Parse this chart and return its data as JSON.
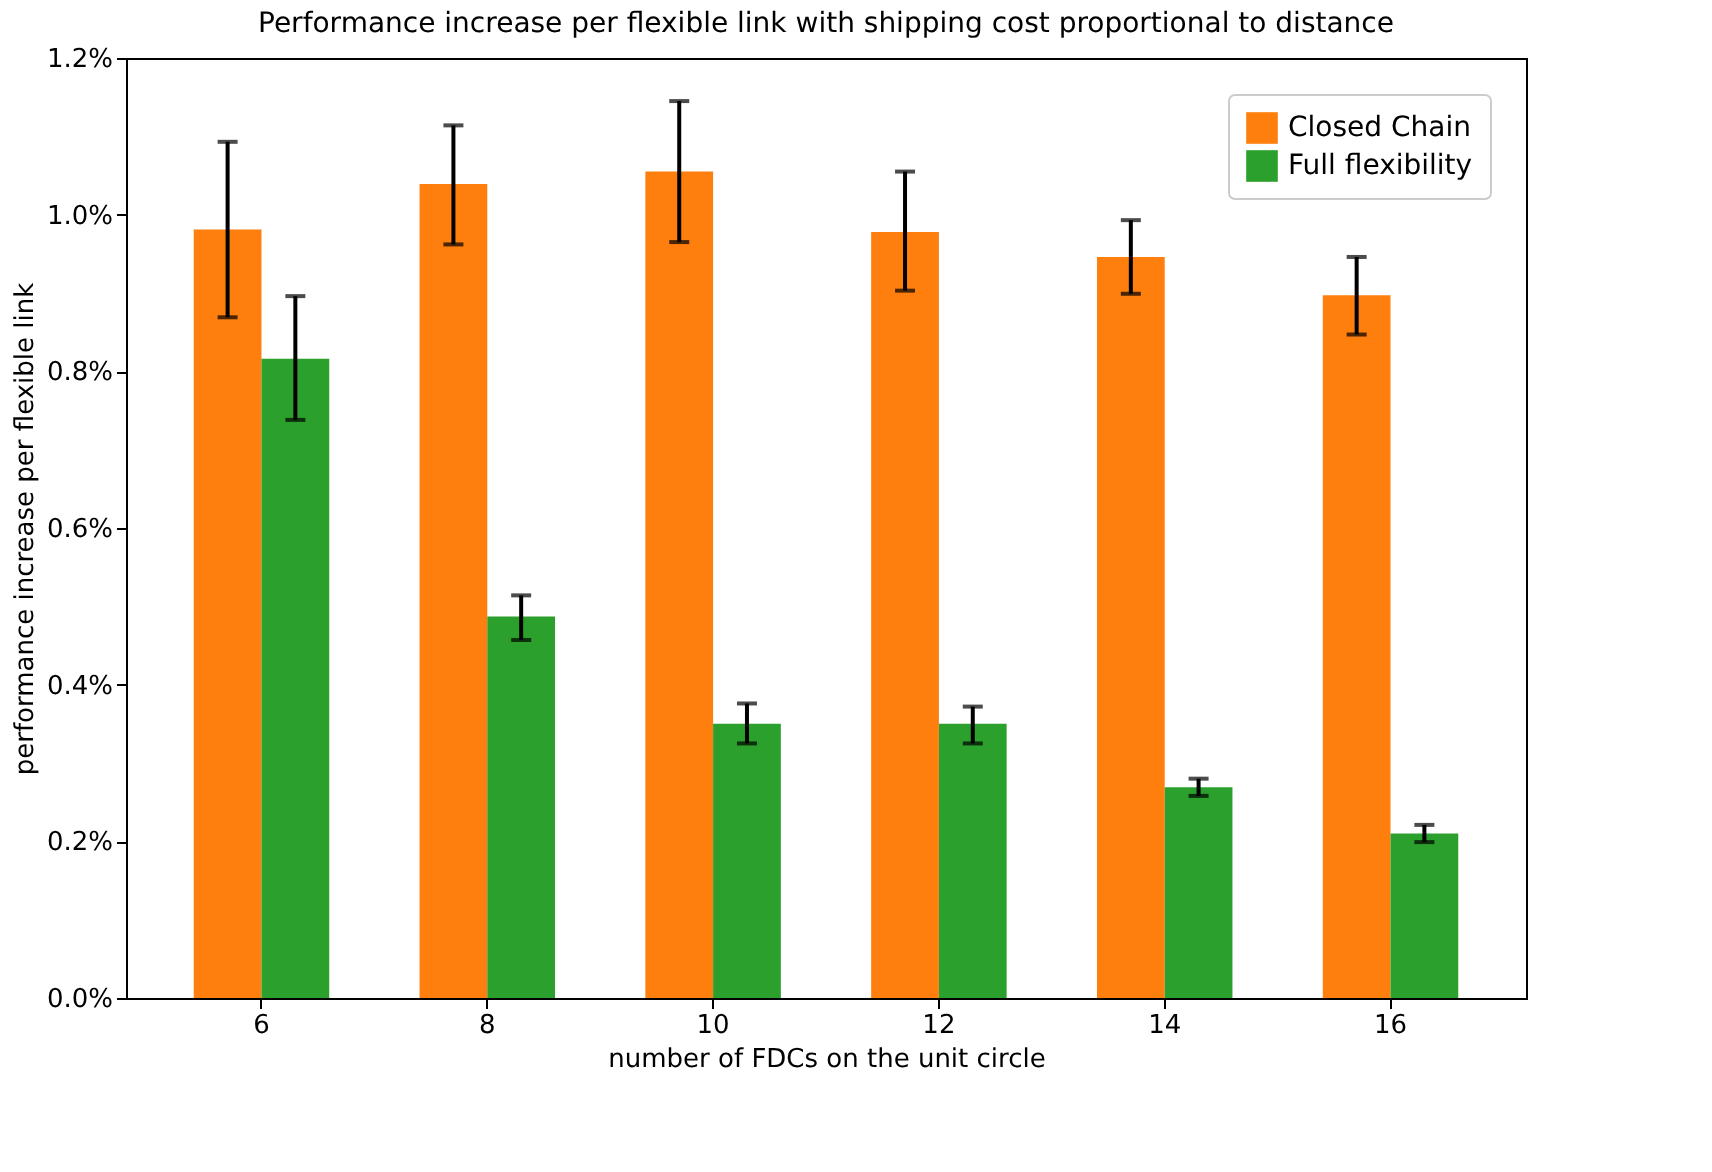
{
  "chart_data": {
    "type": "bar",
    "title": "Performance increase per flexible link with shipping cost proportional to distance",
    "xlabel": "number of FDCs on the unit circle",
    "ylabel": "performance increase per flexible link",
    "categories": [
      "6",
      "8",
      "10",
      "12",
      "14",
      "16"
    ],
    "series": [
      {
        "name": "Closed Chain",
        "color": "#ff7f0e",
        "values": [
          0.981,
          1.039,
          1.055,
          0.978,
          0.946,
          0.897
        ],
        "errors": [
          [
            0.869,
            1.093
          ],
          [
            0.962,
            1.114
          ],
          [
            0.965,
            1.145
          ],
          [
            0.903,
            1.055
          ],
          [
            0.899,
            0.993
          ],
          [
            0.847,
            0.946
          ]
        ]
      },
      {
        "name": "Full flexibility",
        "color": "#2ca02c",
        "values": [
          0.816,
          0.487,
          0.35,
          0.35,
          0.269,
          0.21
        ],
        "errors": [
          [
            0.738,
            0.896
          ],
          [
            0.457,
            0.514
          ],
          [
            0.325,
            0.376
          ],
          [
            0.325,
            0.372
          ],
          [
            0.258,
            0.28
          ],
          [
            0.199,
            0.221
          ]
        ]
      }
    ],
    "ylim": [
      0,
      1.2
    ],
    "yticks": [
      {
        "value": 0,
        "label": "0.0%"
      },
      {
        "value": 0.2,
        "label": "0.2%"
      },
      {
        "value": 0.4,
        "label": "0.4%"
      },
      {
        "value": 0.6,
        "label": "0.6%"
      },
      {
        "value": 0.8,
        "label": "0.8%"
      },
      {
        "value": 1.0,
        "label": "1.0%"
      },
      {
        "value": 1.2,
        "label": "1.2%"
      }
    ],
    "grid": false,
    "legend": "top right"
  }
}
